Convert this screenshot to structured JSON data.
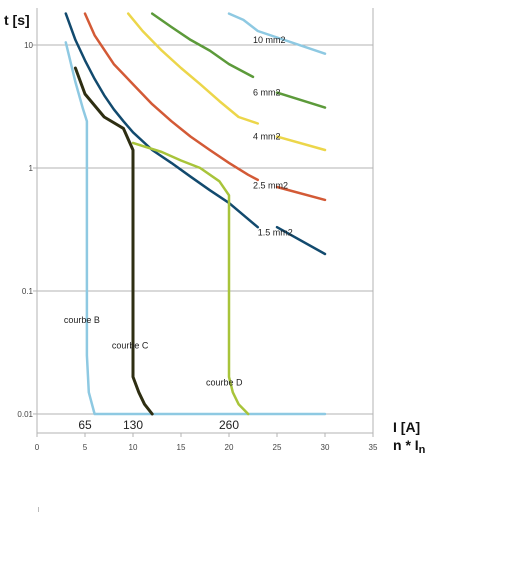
{
  "chart_data": {
    "type": "line",
    "y_scale": "log",
    "grid": true,
    "xlim": [
      0,
      35
    ],
    "ylim": [
      0.007,
      20
    ],
    "x_ticks": [
      "0",
      "5",
      "10",
      "15",
      "20",
      "25",
      "30",
      "35"
    ],
    "y_ticks": [
      {
        "value": 10,
        "label": "10"
      },
      {
        "value": 1,
        "label": "1"
      },
      {
        "value": 0.1,
        "label": "0.1"
      },
      {
        "value": 0.01,
        "label": "0.01"
      }
    ],
    "ylabel": "t [s]",
    "xlabel_line1": "I [A]",
    "xlabel_line2_main": "n * I",
    "xlabel_line2_sub": "n",
    "marked_values": [
      {
        "x": 5,
        "label": "65"
      },
      {
        "x": 10,
        "label": "130"
      },
      {
        "x": 20,
        "label": "260"
      }
    ],
    "series": [
      {
        "name": "10 mm2",
        "color": "#8ec9e2",
        "width": 2.5,
        "points": [
          [
            20,
            18
          ],
          [
            21.5,
            16
          ],
          [
            23,
            13
          ],
          [
            30,
            8.5
          ]
        ],
        "label_at": [
          22.5,
          11
        ]
      },
      {
        "name": "6 mm2",
        "color": "#5c9a3a",
        "width": 2.5,
        "points": [
          [
            12,
            18
          ],
          [
            14,
            14
          ],
          [
            16,
            11
          ],
          [
            18,
            9
          ],
          [
            20,
            7
          ],
          [
            22.5,
            5.5
          ]
        ],
        "gap": [
          [
            25,
            4.1
          ],
          [
            30,
            3.1
          ]
        ],
        "label_at": [
          22.5,
          4.1
        ]
      },
      {
        "name": "4 mm2",
        "color": "#ecd64a",
        "width": 2.5,
        "points": [
          [
            9.5,
            18
          ],
          [
            11,
            13
          ],
          [
            13,
            9
          ],
          [
            15,
            6.5
          ],
          [
            17,
            4.8
          ],
          [
            19,
            3.5
          ],
          [
            21,
            2.6
          ],
          [
            23,
            2.3
          ]
        ],
        "gap": [
          [
            25,
            1.8
          ],
          [
            30,
            1.4
          ]
        ],
        "label_at": [
          22.5,
          1.8
        ]
      },
      {
        "name": "2.5 mm2",
        "color": "#d35a36",
        "width": 2.5,
        "points": [
          [
            5,
            18
          ],
          [
            6,
            12
          ],
          [
            8,
            7
          ],
          [
            10,
            4.8
          ],
          [
            12,
            3.3
          ],
          [
            14,
            2.4
          ],
          [
            16,
            1.8
          ],
          [
            18,
            1.4
          ],
          [
            20,
            1.1
          ],
          [
            22,
            0.88
          ],
          [
            23,
            0.8
          ]
        ],
        "gap": [
          [
            25,
            0.7
          ],
          [
            30,
            0.55
          ]
        ],
        "label_at": [
          22.5,
          0.72
        ]
      },
      {
        "name": "1.5 mm2",
        "color": "#124a6e",
        "width": 2.5,
        "points": [
          [
            3,
            18
          ],
          [
            4,
            11
          ],
          [
            5,
            7.5
          ],
          [
            6,
            5.3
          ],
          [
            7,
            3.9
          ],
          [
            8,
            3
          ],
          [
            9,
            2.4
          ],
          [
            10,
            1.95
          ],
          [
            12,
            1.4
          ],
          [
            14,
            1.1
          ],
          [
            16,
            0.85
          ],
          [
            18,
            0.66
          ],
          [
            20,
            0.52
          ],
          [
            23,
            0.33
          ]
        ],
        "gap": [
          [
            25,
            0.33
          ],
          [
            30,
            0.2
          ]
        ],
        "label_at": [
          23,
          0.3
        ]
      },
      {
        "name": "courbe B",
        "color": "#8ec9e2",
        "width": 2.5,
        "points": [
          [
            3,
            10.5
          ],
          [
            4,
            5
          ],
          [
            4.8,
            3
          ],
          [
            5.2,
            2.4
          ],
          [
            5.2,
            0.03
          ],
          [
            5.4,
            0.015
          ],
          [
            6,
            0.01
          ],
          [
            30,
            0.01
          ]
        ],
        "label_at": [
          2.8,
          0.058
        ]
      },
      {
        "name": "courbe C",
        "color": "#2e2e12",
        "width": 3,
        "points": [
          [
            4,
            6.5
          ],
          [
            5,
            4
          ],
          [
            7,
            2.6
          ],
          [
            9,
            2.1
          ],
          [
            10,
            1.4
          ],
          [
            10,
            0.02
          ],
          [
            10.6,
            0.015
          ],
          [
            11.2,
            0.012
          ],
          [
            12,
            0.01
          ]
        ],
        "label_at": [
          7.8,
          0.036
        ]
      },
      {
        "name": "courbe D",
        "color": "#a8c43a",
        "width": 2.5,
        "points": [
          [
            10,
            1.6
          ],
          [
            13,
            1.35
          ],
          [
            15,
            1.15
          ],
          [
            17,
            1.0
          ],
          [
            19,
            0.78
          ],
          [
            20,
            0.6
          ],
          [
            20,
            0.02
          ],
          [
            20.4,
            0.015
          ],
          [
            21,
            0.012
          ],
          [
            22,
            0.01
          ]
        ],
        "label_at": [
          17.6,
          0.018
        ]
      }
    ]
  }
}
